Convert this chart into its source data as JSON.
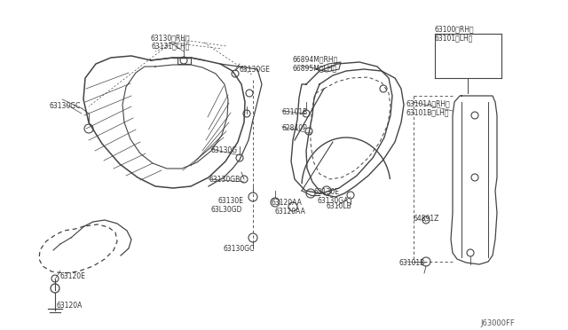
{
  "bg_color": "#ffffff",
  "lc": "#444444",
  "tc": "#333333",
  "diagram_code": "J63000FF",
  "figsize": [
    6.4,
    3.72
  ],
  "dpi": 100,
  "xlim": [
    0,
    640
  ],
  "ylim": [
    0,
    372
  ]
}
